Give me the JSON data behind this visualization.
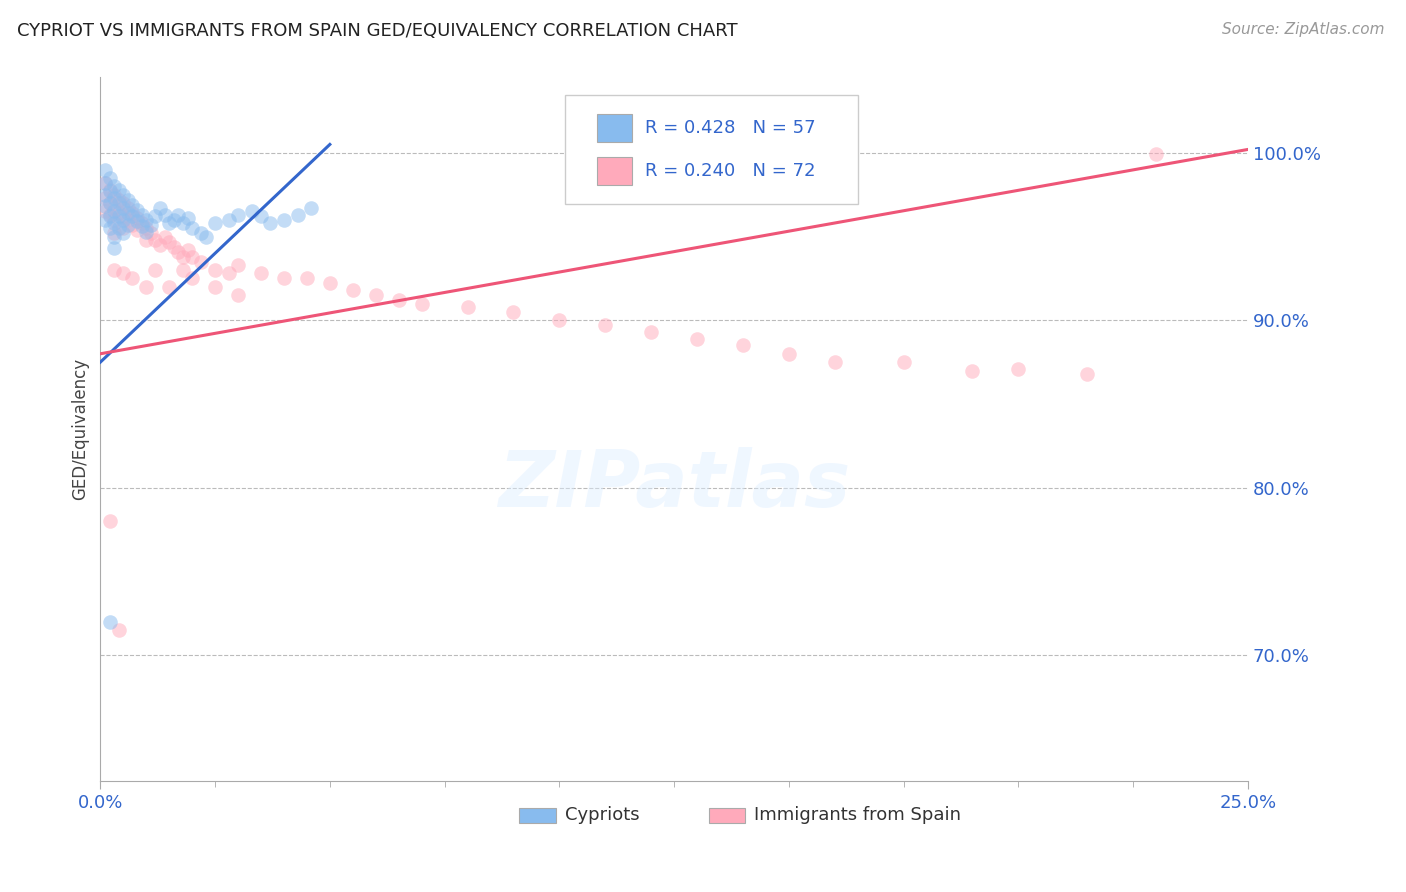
{
  "title": "CYPRIOT VS IMMIGRANTS FROM SPAIN GED/EQUIVALENCY CORRELATION CHART",
  "source": "Source: ZipAtlas.com",
  "ylabel": "GED/Equivalency",
  "y_tick_labels": [
    "70.0%",
    "80.0%",
    "90.0%",
    "100.0%"
  ],
  "y_tick_values": [
    0.7,
    0.8,
    0.9,
    1.0
  ],
  "x_range": [
    0.0,
    0.25
  ],
  "y_range": [
    0.625,
    1.045
  ],
  "legend_blue_r": "R = 0.428",
  "legend_blue_n": "N = 57",
  "legend_pink_r": "R = 0.240",
  "legend_pink_n": "N = 72",
  "legend_label_blue": "Cypriots",
  "legend_label_pink": "Immigrants from Spain",
  "color_blue": "#88BBEE",
  "color_pink": "#FFAABB",
  "color_blue_line": "#3366CC",
  "color_pink_line": "#EE5577",
  "color_axis_labels": "#3366CC",
  "blue_line_x": [
    0.0,
    0.05
  ],
  "blue_line_y": [
    0.875,
    1.005
  ],
  "pink_line_x": [
    0.0,
    0.25
  ],
  "pink_line_y": [
    0.88,
    1.002
  ],
  "blue_points_x": [
    0.001,
    0.001,
    0.001,
    0.001,
    0.001,
    0.002,
    0.002,
    0.002,
    0.002,
    0.002,
    0.003,
    0.003,
    0.003,
    0.003,
    0.003,
    0.003,
    0.004,
    0.004,
    0.004,
    0.004,
    0.005,
    0.005,
    0.005,
    0.005,
    0.006,
    0.006,
    0.006,
    0.007,
    0.007,
    0.008,
    0.008,
    0.009,
    0.009,
    0.01,
    0.01,
    0.011,
    0.012,
    0.013,
    0.014,
    0.015,
    0.016,
    0.017,
    0.018,
    0.019,
    0.02,
    0.022,
    0.023,
    0.025,
    0.028,
    0.03,
    0.033,
    0.035,
    0.037,
    0.04,
    0.043,
    0.046,
    0.002
  ],
  "blue_points_y": [
    0.99,
    0.982,
    0.975,
    0.968,
    0.96,
    0.985,
    0.977,
    0.97,
    0.962,
    0.955,
    0.98,
    0.973,
    0.965,
    0.958,
    0.95,
    0.943,
    0.978,
    0.97,
    0.962,
    0.955,
    0.975,
    0.967,
    0.96,
    0.952,
    0.972,
    0.964,
    0.957,
    0.969,
    0.962,
    0.966,
    0.959,
    0.963,
    0.956,
    0.96,
    0.953,
    0.957,
    0.962,
    0.967,
    0.963,
    0.958,
    0.96,
    0.963,
    0.958,
    0.961,
    0.955,
    0.952,
    0.95,
    0.958,
    0.96,
    0.963,
    0.965,
    0.962,
    0.958,
    0.96,
    0.963,
    0.967,
    0.72
  ],
  "pink_points_x": [
    0.001,
    0.001,
    0.001,
    0.002,
    0.002,
    0.002,
    0.003,
    0.003,
    0.003,
    0.003,
    0.004,
    0.004,
    0.005,
    0.005,
    0.005,
    0.006,
    0.006,
    0.007,
    0.007,
    0.008,
    0.008,
    0.009,
    0.01,
    0.01,
    0.011,
    0.012,
    0.013,
    0.014,
    0.015,
    0.016,
    0.017,
    0.018,
    0.019,
    0.02,
    0.022,
    0.025,
    0.028,
    0.03,
    0.035,
    0.04,
    0.045,
    0.05,
    0.055,
    0.06,
    0.065,
    0.07,
    0.08,
    0.09,
    0.1,
    0.11,
    0.12,
    0.13,
    0.14,
    0.15,
    0.16,
    0.175,
    0.19,
    0.2,
    0.215,
    0.23,
    0.003,
    0.005,
    0.007,
    0.01,
    0.012,
    0.015,
    0.018,
    0.02,
    0.025,
    0.03,
    0.002,
    0.004
  ],
  "pink_points_y": [
    0.982,
    0.973,
    0.965,
    0.978,
    0.97,
    0.963,
    0.975,
    0.967,
    0.96,
    0.952,
    0.972,
    0.964,
    0.97,
    0.962,
    0.955,
    0.967,
    0.96,
    0.964,
    0.957,
    0.961,
    0.954,
    0.958,
    0.955,
    0.948,
    0.952,
    0.948,
    0.945,
    0.95,
    0.947,
    0.944,
    0.941,
    0.938,
    0.942,
    0.938,
    0.935,
    0.93,
    0.928,
    0.933,
    0.928,
    0.925,
    0.925,
    0.922,
    0.918,
    0.915,
    0.912,
    0.91,
    0.908,
    0.905,
    0.9,
    0.897,
    0.893,
    0.889,
    0.885,
    0.88,
    0.875,
    0.875,
    0.87,
    0.871,
    0.868,
    0.999,
    0.93,
    0.928,
    0.925,
    0.92,
    0.93,
    0.92,
    0.93,
    0.925,
    0.92,
    0.915,
    0.78,
    0.715
  ]
}
